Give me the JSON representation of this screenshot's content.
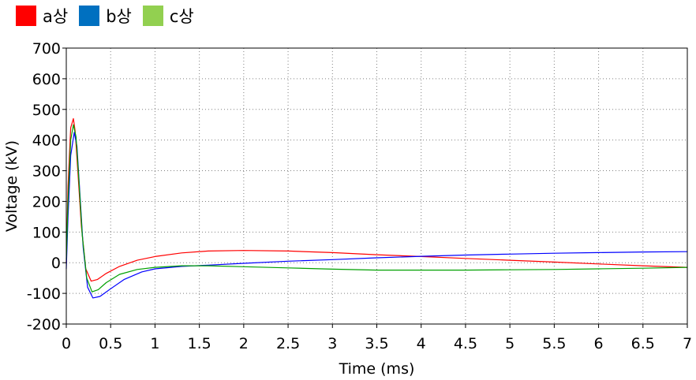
{
  "chart_data": {
    "type": "line",
    "xlabel": "Time (ms)",
    "ylabel": "Voltage (kV)",
    "xlim": [
      0,
      7
    ],
    "ylim": [
      -200,
      700
    ],
    "xticks": [
      "0",
      "0.5",
      "1",
      "1.5",
      "2",
      "2.5",
      "3",
      "3.5",
      "4",
      "4.5",
      "5",
      "5.5",
      "6",
      "6.5",
      "7"
    ],
    "yticks": [
      "-200",
      "-100",
      "0",
      "100",
      "200",
      "300",
      "400",
      "500",
      "600",
      "700"
    ],
    "grid": true,
    "legend_position": "top-left",
    "series": [
      {
        "name": "a상",
        "color": "#ff0000",
        "x": [
          0,
          0.02,
          0.05,
          0.08,
          0.1,
          0.13,
          0.17,
          0.22,
          0.28,
          0.35,
          0.45,
          0.6,
          0.8,
          1.0,
          1.3,
          1.6,
          2.0,
          2.5,
          3.0,
          3.5,
          4.0,
          4.5,
          5.0,
          5.5,
          6.0,
          6.5,
          7.0
        ],
        "y": [
          0,
          250,
          440,
          470,
          430,
          300,
          120,
          -20,
          -60,
          -55,
          -35,
          -12,
          8,
          20,
          32,
          38,
          40,
          38,
          33,
          26,
          20,
          14,
          8,
          2,
          -4,
          -10,
          -15
        ]
      },
      {
        "name": "b상",
        "color": "#0000ff",
        "x": [
          0,
          0.02,
          0.05,
          0.09,
          0.12,
          0.15,
          0.19,
          0.24,
          0.3,
          0.38,
          0.5,
          0.65,
          0.85,
          1.0,
          1.3,
          1.6,
          2.0,
          2.5,
          3.0,
          3.5,
          4.0,
          4.5,
          5.0,
          5.5,
          6.0,
          6.5,
          7.0
        ],
        "y": [
          -20,
          150,
          350,
          425,
          380,
          240,
          50,
          -80,
          -115,
          -110,
          -85,
          -55,
          -30,
          -20,
          -12,
          -8,
          -2,
          5,
          10,
          16,
          21,
          25,
          28,
          31,
          33,
          35,
          36
        ]
      },
      {
        "name": "c상",
        "color": "#00a000",
        "x": [
          0,
          0.02,
          0.05,
          0.08,
          0.11,
          0.14,
          0.18,
          0.23,
          0.29,
          0.36,
          0.45,
          0.6,
          0.8,
          1.0,
          1.3,
          1.6,
          2.0,
          2.5,
          3.0,
          3.5,
          4.0,
          4.5,
          5.0,
          5.5,
          6.0,
          6.5,
          7.0
        ],
        "y": [
          10,
          200,
          400,
          450,
          410,
          280,
          90,
          -50,
          -95,
          -88,
          -65,
          -38,
          -22,
          -15,
          -10,
          -10,
          -13,
          -17,
          -21,
          -24,
          -24,
          -24,
          -23,
          -22,
          -20,
          -18,
          -15
        ]
      }
    ]
  },
  "legend_swatch_colors": [
    "#ff0000",
    "#0070c0",
    "#92d050"
  ]
}
